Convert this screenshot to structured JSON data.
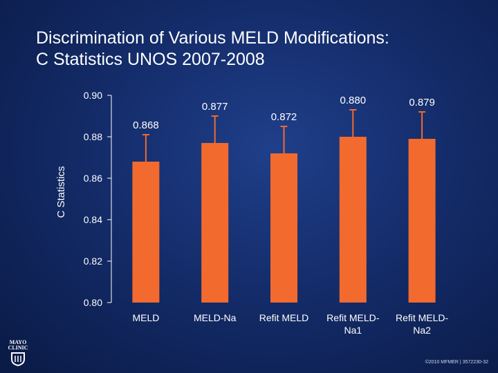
{
  "slide": {
    "title_line1": "Discrimination of Various MELD Modifications:",
    "title_line2": "C Statistics UNOS 2007-2008",
    "footer": "©2010 MFMER | 3572230-32",
    "logo_line1": "MAYO",
    "logo_line2": "CLINIC"
  },
  "chart_data": {
    "type": "bar",
    "title": "",
    "xlabel": "",
    "ylabel": "C Statistics",
    "ylim": [
      0.8,
      0.9
    ],
    "yticks": [
      "0.80",
      "0.82",
      "0.84",
      "0.86",
      "0.88",
      "0.90"
    ],
    "categories": [
      [
        "MELD"
      ],
      [
        "MELD-Na"
      ],
      [
        "Refit MELD"
      ],
      [
        "Refit MELD-",
        "Na1"
      ],
      [
        "Refit MELD-",
        "Na2"
      ]
    ],
    "values": [
      0.868,
      0.877,
      0.872,
      0.88,
      0.879
    ],
    "error_upper": [
      0.881,
      0.89,
      0.885,
      0.893,
      0.892
    ],
    "data_labels": [
      "0.868",
      "0.877",
      "0.872",
      "0.880",
      "0.879"
    ],
    "bar_color": "#f26a2e",
    "grid": false
  }
}
